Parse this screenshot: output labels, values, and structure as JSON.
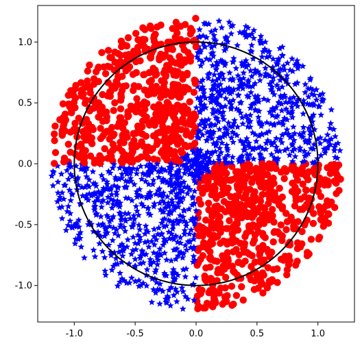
{
  "chart_data": {
    "type": "scatter",
    "title": "",
    "xlabel": "",
    "ylabel": "",
    "xlim": [
      -1.3,
      1.3
    ],
    "ylim": [
      -1.3,
      1.3
    ],
    "grid": false,
    "legend": "none",
    "x_ticks": [
      "-1.0",
      "-0.5",
      "0.0",
      "0.5",
      "1.0"
    ],
    "x_tick_values": [
      -1.0,
      -0.5,
      0.0,
      0.5,
      1.0
    ],
    "y_ticks": [
      "1.0",
      "0.5",
      "0.0",
      "-0.5",
      "-1.0"
    ],
    "y_tick_values": [
      1.0,
      0.5,
      0.0,
      -0.5,
      -1.0
    ],
    "circle": {
      "center": [
        0,
        0
      ],
      "radius": 1.0,
      "color": "#000000"
    },
    "series": [
      {
        "marker": "circle",
        "color": "#ff0000",
        "region": "quadrants II and IV (x*y < 0), outside a small central core",
        "approx_count": 1000
      },
      {
        "marker": "star",
        "color": "#0000ff",
        "region": "quadrants I and III (x*y > 0) plus central core",
        "approx_count": 1400
      }
    ]
  }
}
